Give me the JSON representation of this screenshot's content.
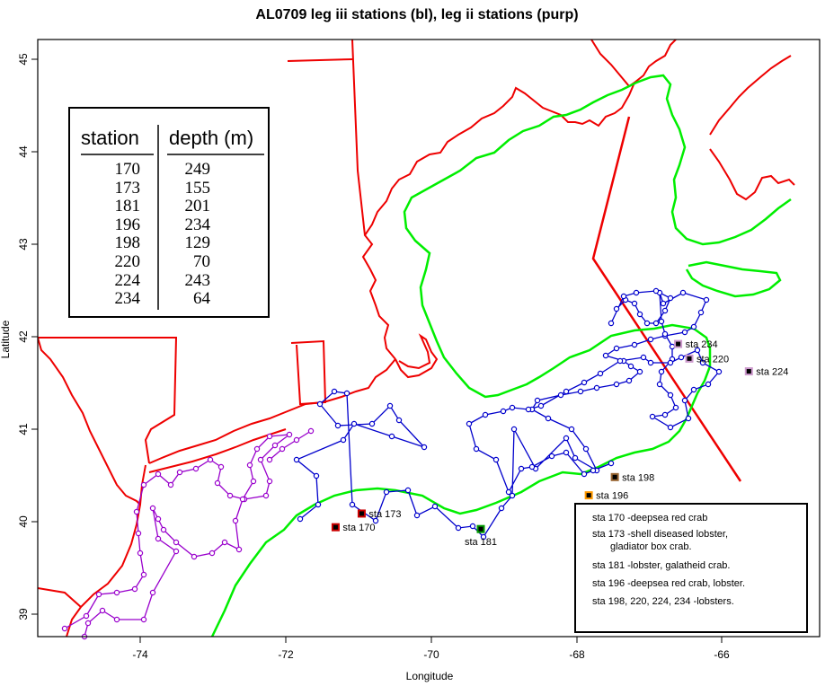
{
  "title": "AL0709 leg iii stations (bl), leg ii stations (purp)",
  "axes": {
    "xlabel": "Longitude",
    "ylabel": "Latitude",
    "xticks": [
      "-74",
      "-72",
      "-70",
      "-68",
      "-66"
    ],
    "yticks": [
      "39",
      "40",
      "41",
      "42",
      "43",
      "44",
      "45"
    ],
    "xlim": [
      -75.4,
      -64.9
    ],
    "ylim": [
      38.75,
      45.3
    ]
  },
  "colors": {
    "coast": "#ee0000",
    "depth_contour": "#00ee00",
    "leg_iii": "#0000cc",
    "leg_ii": "#9900cc",
    "boundary": "#ee0000",
    "sta_170": "#cc0000",
    "sta_173": "#cc0000",
    "sta_181": "#009900",
    "sta_196": "#ff9900",
    "sta_198": "#996633",
    "sta_220": "#cc99cc",
    "sta_224": "#cc99cc",
    "sta_234": "#cc99cc"
  },
  "depth_table": {
    "header_station": "station",
    "header_depth": "depth (m)",
    "rows": [
      {
        "station": "170",
        "depth": "249"
      },
      {
        "station": "173",
        "depth": "155"
      },
      {
        "station": "181",
        "depth": "201"
      },
      {
        "station": "196",
        "depth": "234"
      },
      {
        "station": "198",
        "depth": "129"
      },
      {
        "station": "220",
        "depth": "70"
      },
      {
        "station": "224",
        "depth": "243"
      },
      {
        "station": "234",
        "depth": "64"
      }
    ]
  },
  "stations": [
    {
      "label": "sta 170",
      "lon": -71.4,
      "lat": 39.95
    },
    {
      "label": "sta 173",
      "lon": -71.05,
      "lat": 40.1
    },
    {
      "label": "sta 181",
      "lon": -69.45,
      "lat": 39.93
    },
    {
      "label": "sta 196",
      "lon": -68.0,
      "lat": 40.3
    },
    {
      "label": "sta 198",
      "lon": -67.65,
      "lat": 40.5
    },
    {
      "label": "sta 220",
      "lon": -66.65,
      "lat": 41.8
    },
    {
      "label": "sta 224",
      "lon": -65.85,
      "lat": 41.66
    },
    {
      "label": "sta 234",
      "lon": -66.8,
      "lat": 41.96
    }
  ],
  "notes": [
    "sta 170 -deepsea red crab",
    "sta 173 -shell diseased lobster,",
    "gladiator box crab.",
    "sta 181 -lobster, galatheid crab.",
    "sta 196 -deepsea red crab, lobster.",
    "sta 198, 220, 224, 234  -lobsters."
  ]
}
